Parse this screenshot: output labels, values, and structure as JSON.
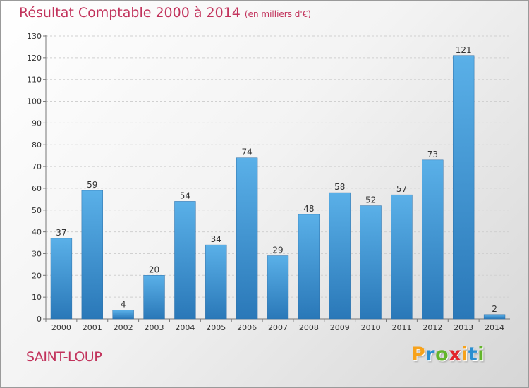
{
  "header": {
    "title": "Résultat Comptable 2000 à 2014",
    "subtitle": "(en milliers d'€)"
  },
  "footer": {
    "town": "SAINT-LOUP",
    "logo": [
      "P",
      "r",
      "o",
      "x",
      "i",
      "t",
      "i"
    ],
    "logo_colors": [
      "#f7a21b",
      "#2a8fd0",
      "#63b52b",
      "#e2262b",
      "#f7a21b",
      "#2a8fd0",
      "#63b52b"
    ]
  },
  "chart_data": {
    "type": "bar",
    "title": "Résultat Comptable 2000 à 2014",
    "subtitle": "(en milliers d'€)",
    "xlabel": "",
    "ylabel": "",
    "categories": [
      "2000",
      "2001",
      "2002",
      "2003",
      "2004",
      "2005",
      "2006",
      "2007",
      "2008",
      "2009",
      "2010",
      "2011",
      "2012",
      "2013",
      "2014"
    ],
    "values": [
      37,
      59,
      4,
      20,
      54,
      34,
      74,
      29,
      48,
      58,
      52,
      57,
      73,
      121,
      2
    ],
    "ylim": [
      0,
      130
    ],
    "yticks": [
      0,
      10,
      20,
      30,
      40,
      50,
      60,
      70,
      80,
      90,
      100,
      110,
      120,
      130
    ],
    "grid": true,
    "legend": "none",
    "bar_color_top": "#5ab0e8",
    "bar_color_bottom": "#2a78b8"
  }
}
